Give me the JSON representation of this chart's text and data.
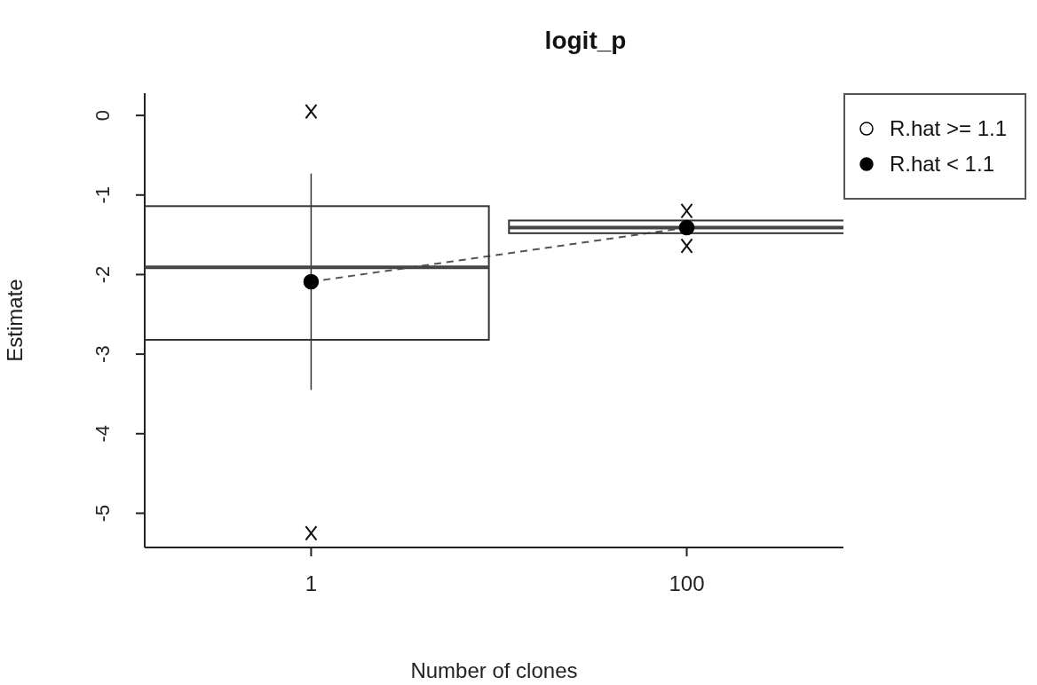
{
  "chart_data": {
    "type": "box",
    "title": "logit_p",
    "xlabel": "Number of clones",
    "ylabel": "Estimate",
    "categories": [
      "1",
      "100"
    ],
    "boxes": [
      {
        "low": -3.45,
        "q1": -2.82,
        "median": -1.91,
        "q3": -1.14,
        "high": -0.73,
        "outliers": [
          0.05,
          -5.25
        ]
      },
      {
        "low": -1.48,
        "q1": -1.48,
        "median": -1.41,
        "q3": -1.32,
        "high": -1.32,
        "outliers": [
          -1.2,
          -1.64
        ]
      }
    ],
    "series": [
      {
        "name": "R.hat >= 1.1",
        "type": "line",
        "color": "#ffffff",
        "values": [
          null,
          null
        ]
      },
      {
        "name": "R.hat < 1.1",
        "type": "line",
        "color": "#000000",
        "values": [
          -2.09,
          -1.41
        ]
      }
    ],
    "ylim": [
      -5.43,
      0.28
    ],
    "yticks": [
      0,
      -1,
      -2,
      -3,
      -4,
      -5
    ],
    "marker": "circle",
    "line_style": "dashed",
    "legend": "top right"
  }
}
